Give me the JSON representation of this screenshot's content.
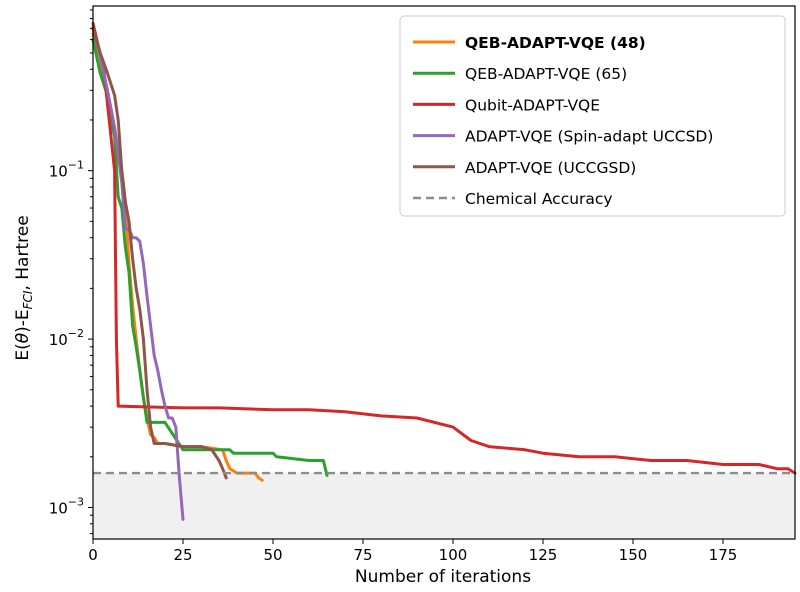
{
  "chart_data": {
    "type": "line",
    "xlabel": "Number of iterations",
    "ylabel": {
      "prefix": "E(",
      "theta": "θ",
      "mid": ")-E",
      "sub": "FCI",
      "suffix": ", Hartree"
    },
    "yscale": "log",
    "xlim": [
      0,
      195
    ],
    "ylim": [
      0.00065,
      0.95
    ],
    "x_ticks": [
      0,
      25,
      50,
      75,
      100,
      125,
      150,
      175
    ],
    "y_ticks": [
      {
        "value": 0.001,
        "base": "10",
        "exp": "−3"
      },
      {
        "value": 0.01,
        "base": "10",
        "exp": "−2"
      },
      {
        "value": 0.1,
        "base": "10",
        "exp": "−1"
      }
    ],
    "grid": false,
    "legend_position": "top-right",
    "chemical_accuracy": 0.0016,
    "shaded_region": "below chemical accuracy",
    "series": [
      {
        "name": "QEB-ADAPT-VQE (48)",
        "bold": true,
        "color": "#ff7f0e",
        "x": [
          0,
          2,
          4,
          6,
          8,
          9,
          10,
          11,
          12,
          13,
          14,
          15,
          16,
          17,
          18,
          20,
          25,
          30,
          36,
          37,
          38,
          40,
          45,
          46,
          47
        ],
        "y": [
          0.65,
          0.42,
          0.3,
          0.18,
          0.1,
          0.065,
          0.028,
          0.016,
          0.01,
          0.0065,
          0.0045,
          0.0034,
          0.0027,
          0.0026,
          0.0024,
          0.0024,
          0.0023,
          0.0023,
          0.0022,
          0.0019,
          0.0017,
          0.0016,
          0.0016,
          0.0015,
          0.00145
        ]
      },
      {
        "name": "QEB-ADAPT-VQE (65)",
        "bold": false,
        "color": "#2ca02c",
        "x": [
          0,
          2,
          4,
          5,
          6,
          7,
          8,
          9,
          10,
          11,
          12,
          13,
          14,
          15,
          20,
          25,
          38,
          39,
          50,
          51,
          60,
          64,
          65
        ],
        "y": [
          0.6,
          0.38,
          0.28,
          0.2,
          0.16,
          0.07,
          0.06,
          0.035,
          0.025,
          0.012,
          0.009,
          0.0065,
          0.0045,
          0.0032,
          0.0032,
          0.0022,
          0.0022,
          0.0021,
          0.0021,
          0.002,
          0.0019,
          0.0019,
          0.00155
        ]
      },
      {
        "name": "Qubit-ADAPT-VQE",
        "bold": false,
        "color": "#d62728",
        "x": [
          0,
          3,
          6,
          6.5,
          7,
          25,
          35,
          50,
          60,
          70,
          80,
          90,
          100,
          105,
          110,
          120,
          125,
          135,
          145,
          155,
          165,
          175,
          185,
          190,
          193,
          195
        ],
        "y": [
          0.75,
          0.4,
          0.1,
          0.01,
          0.004,
          0.0039,
          0.0039,
          0.0038,
          0.0038,
          0.0037,
          0.0035,
          0.0034,
          0.003,
          0.0025,
          0.0023,
          0.0022,
          0.0021,
          0.002,
          0.002,
          0.0019,
          0.0019,
          0.0018,
          0.0018,
          0.0017,
          0.0017,
          0.0016
        ]
      },
      {
        "name": "ADAPT-VQE (Spin-adapt UCCSD)",
        "bold": false,
        "color": "#9467bd",
        "x": [
          0,
          2,
          4,
          6,
          8,
          9,
          10,
          11,
          12,
          13,
          14,
          15,
          16,
          17,
          18,
          19,
          20,
          21,
          22,
          23,
          24,
          25
        ],
        "y": [
          0.7,
          0.48,
          0.3,
          0.18,
          0.085,
          0.045,
          0.045,
          0.04,
          0.04,
          0.038,
          0.028,
          0.018,
          0.012,
          0.008,
          0.0065,
          0.005,
          0.004,
          0.0034,
          0.0034,
          0.003,
          0.0015,
          0.00085
        ]
      },
      {
        "name": "ADAPT-VQE (UCCGSD)",
        "bold": false,
        "color": "#8c564b",
        "x": [
          0,
          2,
          4,
          6,
          7,
          8,
          9,
          10,
          11,
          12,
          13,
          14,
          15,
          16,
          17,
          20,
          25,
          30,
          33,
          35,
          36,
          37
        ],
        "y": [
          0.7,
          0.5,
          0.38,
          0.28,
          0.2,
          0.1,
          0.065,
          0.05,
          0.03,
          0.02,
          0.015,
          0.01,
          0.005,
          0.003,
          0.0024,
          0.0024,
          0.0023,
          0.0023,
          0.0022,
          0.0019,
          0.0017,
          0.0015
        ]
      },
      {
        "name": "Chemical Accuracy",
        "bold": false,
        "color": "#8c8c8c",
        "dashed": true,
        "x": [
          0,
          195
        ],
        "y": [
          0.0016,
          0.0016
        ]
      }
    ]
  }
}
